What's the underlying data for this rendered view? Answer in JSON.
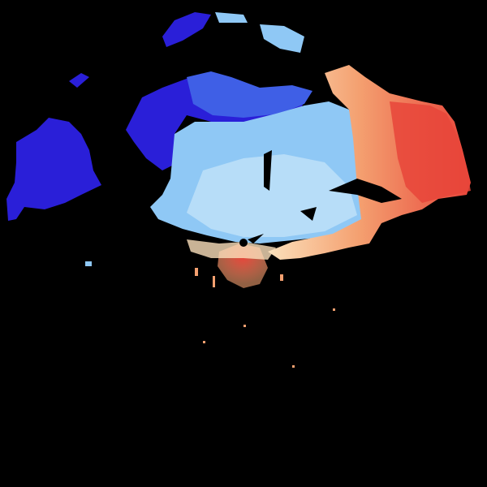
{
  "image": {
    "kind": "radar-velocity-sweep",
    "background_color": "#000000",
    "palette": {
      "inbound_strong": "#2a1fd8",
      "inbound_medium": "#3f5fe6",
      "inbound_light": "#8fc8f5",
      "near_zero_light": "#c8e6fa",
      "near_zero_warm": "#fbe0bb",
      "outbound_medium": "#f4a070",
      "outbound_strong": "#e8453a",
      "radar_site": "#000000"
    }
  }
}
